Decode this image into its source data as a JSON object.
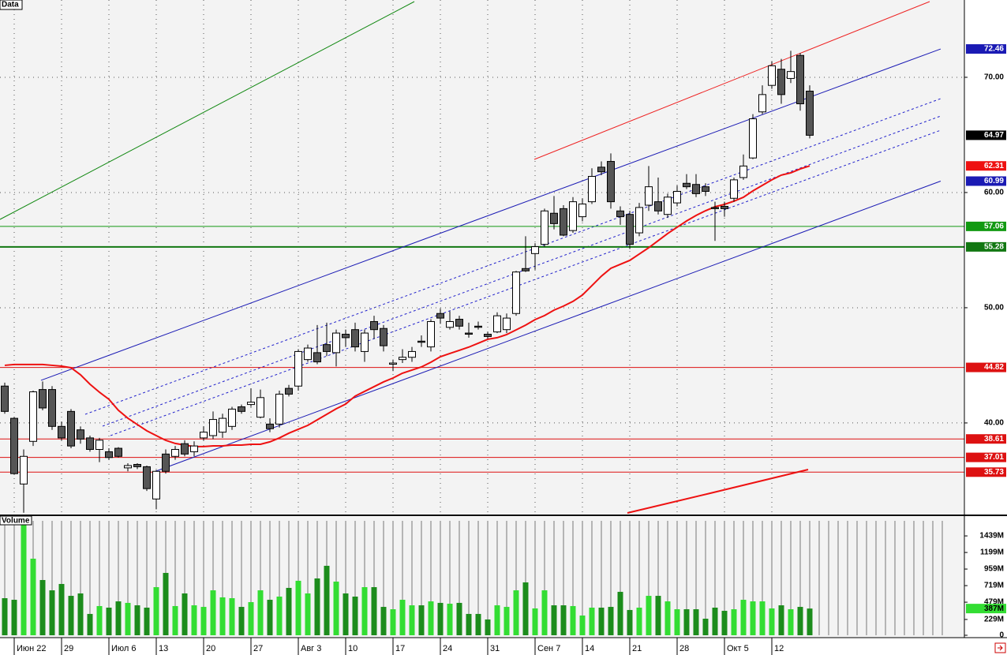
{
  "chart_data": {
    "type": "candlestick",
    "panel_title": "Data",
    "ylim": [
      32.05,
      76.71
    ],
    "yticks": [
      {
        "value": 70,
        "label": "70.00"
      },
      {
        "value": 60,
        "label": "60.00"
      },
      {
        "value": 50,
        "label": "50.00"
      },
      {
        "value": 40,
        "label": "40.00"
      }
    ],
    "grid": true,
    "up_color": "#ffffff",
    "down_color": "#555555",
    "categories": [
      null,
      "Июн 22",
      null,
      null,
      null,
      null,
      "29",
      null,
      null,
      null,
      null,
      "Июл 6",
      null,
      null,
      null,
      null,
      "13",
      null,
      null,
      null,
      null,
      "20",
      null,
      null,
      null,
      null,
      "27",
      null,
      null,
      null,
      null,
      "Авг 3",
      null,
      null,
      null,
      null,
      "10",
      null,
      null,
      null,
      null,
      "17",
      null,
      null,
      null,
      null,
      "24",
      null,
      null,
      null,
      null,
      "31",
      null,
      null,
      null,
      null,
      "Сен 7",
      null,
      null,
      null,
      null,
      "14",
      null,
      null,
      null,
      null,
      "21",
      null,
      null,
      null,
      null,
      "28",
      null,
      null,
      null,
      null,
      "Окт 5",
      null,
      null,
      null,
      null,
      "12",
      null,
      null,
      null,
      null
    ],
    "candles": {
      "open": [
        43.2,
        40.4,
        34.7,
        38.4,
        42.9,
        42.9,
        39.7,
        41.0,
        39.4,
        38.7,
        37.7,
        37.5,
        37.8,
        36.1,
        36.4,
        36.2,
        33.4,
        37.3,
        37.1,
        38.2,
        37.5,
        38.7,
        38.9,
        39.2,
        39.7,
        41.4,
        41.6,
        40.5,
        39.9,
        39.9,
        43.0,
        43.2,
        45.5,
        46.1,
        46.8,
        46.1,
        47.7,
        48.1,
        46.2,
        48.8,
        48.2,
        45.1,
        45.5,
        45.7,
        47.1,
        46.6,
        49.5,
        48.3,
        49.0,
        47.8,
        48.4,
        47.7,
        47.9,
        48.1,
        49.5,
        53.4,
        54.7,
        55.5,
        58.2,
        58.6,
        56.7,
        57.9,
        59.2,
        62.2,
        62.7,
        58.4,
        58.1,
        56.5,
        58.9,
        59.2,
        58.1,
        59.1,
        60.8,
        60.7,
        60.5,
        58.7,
        58.8,
        59.5,
        61.3,
        63.0,
        67.0,
        69.3,
        70.7,
        69.9,
        71.9,
        68.8
      ],
      "high": [
        43.5,
        40.5,
        37.7,
        42.8,
        43.6,
        43.2,
        40.1,
        41.2,
        39.7,
        38.9,
        38.7,
        37.8,
        37.9,
        36.5,
        36.5,
        36.3,
        35.9,
        37.7,
        38.0,
        38.5,
        38.4,
        39.7,
        41.0,
        40.8,
        41.4,
        41.6,
        43.0,
        42.9,
        40.4,
        42.8,
        43.3,
        46.4,
        46.8,
        48.5,
        48.7,
        48.1,
        48.1,
        48.7,
        48.1,
        49.3,
        48.5,
        45.5,
        46.4,
        46.6,
        47.6,
        49.0,
        49.9,
        49.7,
        49.3,
        48.7,
        48.8,
        47.9,
        49.6,
        49.5,
        53.2,
        56.2,
        55.6,
        58.6,
        59.7,
        58.9,
        59.6,
        59.5,
        62.1,
        62.7,
        63.4,
        58.8,
        58.4,
        59.1,
        62.3,
        61.3,
        59.9,
        60.6,
        61.6,
        61.6,
        60.8,
        59.2,
        59.2,
        61.3,
        63.3,
        66.8,
        69.3,
        71.4,
        71.6,
        72.3,
        72.1,
        69.3
      ],
      "low": [
        40.8,
        35.5,
        32.2,
        38.0,
        41.1,
        39.4,
        38.5,
        37.8,
        38.2,
        37.5,
        36.6,
        36.8,
        37.0,
        35.8,
        36.0,
        34.1,
        32.5,
        35.6,
        36.8,
        37.1,
        37.1,
        38.5,
        38.6,
        38.7,
        39.4,
        40.8,
        41.4,
        40.4,
        39.2,
        39.6,
        42.3,
        42.8,
        45.3,
        45.1,
        45.8,
        44.9,
        46.6,
        46.2,
        45.3,
        47.3,
        46.2,
        44.5,
        45.2,
        45.3,
        46.6,
        46.2,
        48.6,
        48.1,
        48.1,
        47.4,
        48.1,
        47.3,
        47.8,
        47.8,
        49.3,
        53.1,
        53.3,
        55.3,
        56.8,
        56.2,
        56.5,
        57.5,
        59.0,
        61.5,
        58.6,
        57.2,
        55.1,
        56.2,
        58.4,
        58.1,
        57.8,
        58.8,
        60.3,
        59.6,
        59.7,
        55.8,
        57.9,
        59.2,
        61.1,
        62.9,
        66.8,
        69.0,
        67.7,
        69.5,
        67.1,
        64.7
      ],
      "close": [
        41.0,
        35.6,
        37.1,
        42.7,
        41.3,
        39.7,
        38.7,
        38.0,
        38.6,
        37.7,
        38.5,
        37.0,
        37.1,
        36.3,
        36.2,
        34.3,
        35.8,
        35.8,
        37.7,
        37.3,
        38.0,
        39.2,
        40.3,
        40.4,
        41.2,
        41.0,
        41.8,
        42.2,
        39.5,
        42.5,
        42.5,
        46.2,
        46.5,
        45.3,
        46.2,
        47.8,
        47.4,
        46.6,
        47.8,
        48.1,
        46.7,
        45.2,
        45.7,
        46.2,
        47.0,
        48.8,
        49.1,
        48.8,
        48.4,
        47.7,
        48.3,
        47.5,
        49.3,
        49.1,
        53.1,
        53.2,
        55.3,
        58.4,
        57.3,
        56.3,
        59.2,
        59.0,
        61.4,
        61.8,
        59.2,
        57.9,
        55.5,
        58.7,
        60.5,
        58.4,
        59.6,
        60.1,
        60.5,
        59.9,
        60.1,
        58.6,
        58.6,
        61.1,
        62.3,
        66.4,
        68.5,
        71.0,
        68.5,
        70.5,
        67.7,
        64.97
      ],
      "close_label_color": "#000000"
    },
    "ma": {
      "color": "#ee1111",
      "values": [
        45.0,
        45.07,
        45.07,
        45.07,
        45.07,
        45.0,
        44.93,
        44.79,
        44.18,
        43.36,
        42.67,
        42.05,
        41.1,
        40.41,
        39.86,
        39.32,
        38.9,
        38.49,
        38.22,
        38.08,
        37.95,
        37.95,
        38.01,
        38.01,
        38.08,
        38.08,
        38.15,
        38.15,
        38.36,
        38.7,
        39.11,
        39.45,
        39.79,
        40.27,
        40.75,
        41.23,
        41.64,
        42.33,
        42.74,
        43.15,
        43.56,
        43.9,
        44.32,
        44.59,
        44.86,
        45.27,
        45.75,
        46.03,
        46.3,
        46.58,
        46.92,
        47.26,
        47.4,
        47.67,
        48.08,
        48.49,
        48.97,
        49.32,
        49.79,
        50.14,
        50.55,
        51.1,
        51.92,
        52.74,
        53.42,
        53.77,
        54.11,
        54.66,
        55.21,
        55.82,
        56.44,
        56.99,
        57.53,
        58.01,
        58.42,
        58.77,
        58.97,
        59.25,
        59.59,
        60.14,
        60.62,
        61.1,
        61.51,
        61.71,
        62.05,
        62.31
      ]
    },
    "channels": [
      {
        "color": "#1a1ab4",
        "x": [
          3.83,
          98.83
        ],
        "y": [
          43.7,
          72.46
        ]
      },
      {
        "color": "#1a1ab4",
        "x": [
          15.75,
          98.83
        ],
        "y": [
          35.75,
          60.99
        ]
      }
    ],
    "hlines": [
      {
        "value": 57.06,
        "color": "#119911",
        "width": 1
      },
      {
        "value": 55.28,
        "color": "#117711",
        "width": 2
      },
      {
        "value": 44.82,
        "color": "#dd1111",
        "width": 1
      },
      {
        "value": 38.61,
        "color": "#dd1111",
        "width": 1
      },
      {
        "value": 37.01,
        "color": "#dd1111",
        "width": 1
      },
      {
        "value": 35.73,
        "color": "#dd1111",
        "width": 1
      }
    ],
    "volume": {
      "panel_title": "Volume",
      "ylim": [
        0,
        1657
      ],
      "yticks": [
        {
          "value": 1439,
          "label": "1439M"
        },
        {
          "value": 1199,
          "label": "1199M"
        },
        {
          "value": 959,
          "label": "959M"
        },
        {
          "value": 719,
          "label": "719M"
        },
        {
          "value": 479,
          "label": "479M"
        },
        {
          "value": 229,
          "label": "229M"
        },
        0
      ],
      "up_color": "#33dd33",
      "down_color": "#1c8c1c",
      "values": [
        537,
        514,
        1700,
        1109,
        800,
        651,
        743,
        571,
        606,
        309,
        423,
        400,
        491,
        469,
        434,
        400,
        697,
        903,
        423,
        606,
        434,
        411,
        651,
        549,
        537,
        411,
        480,
        651,
        514,
        560,
        686,
        789,
        606,
        823,
        1006,
        777,
        606,
        560,
        697,
        697,
        411,
        377,
        514,
        434,
        434,
        491,
        469,
        457,
        469,
        309,
        309,
        229,
        434,
        411,
        651,
        766,
        389,
        651,
        434,
        434,
        423,
        286,
        400,
        400,
        411,
        629,
        366,
        400,
        571,
        571,
        491,
        377,
        377,
        377,
        240,
        400,
        354,
        377,
        514,
        491,
        491,
        389,
        434,
        377,
        411,
        387
      ],
      "current": {
        "value": 387,
        "label": "387M"
      }
    }
  }
}
